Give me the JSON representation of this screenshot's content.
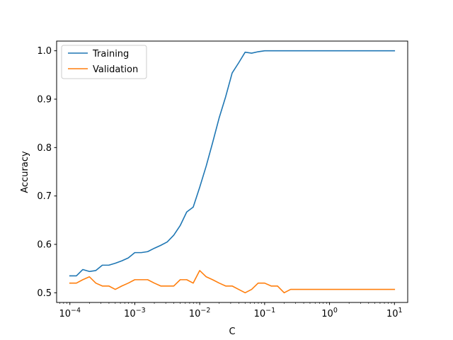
{
  "chart_data": {
    "type": "line",
    "xlabel": "C",
    "ylabel": "Accuracy",
    "xscale": "log",
    "xlim": [
      6.25e-05,
      16
    ],
    "ylim": [
      0.48,
      1.02
    ],
    "xticks": [
      {
        "value": 0.0001,
        "base": "10",
        "exp": "−4"
      },
      {
        "value": 0.001,
        "base": "10",
        "exp": "−3"
      },
      {
        "value": 0.01,
        "base": "10",
        "exp": "−2"
      },
      {
        "value": 0.1,
        "base": "10",
        "exp": "−1"
      },
      {
        "value": 1,
        "base": "10",
        "exp": "0"
      },
      {
        "value": 10,
        "base": "10",
        "exp": "1"
      }
    ],
    "yticks": [
      {
        "value": 0.5,
        "label": "0.5"
      },
      {
        "value": 0.6,
        "label": "0.6"
      },
      {
        "value": 0.7,
        "label": "0.7"
      },
      {
        "value": 0.8,
        "label": "0.8"
      },
      {
        "value": 0.9,
        "label": "0.9"
      },
      {
        "value": 1.0,
        "label": "1.0"
      }
    ],
    "grid": false,
    "legend_position": "top-left",
    "series": [
      {
        "name": "Training",
        "color": "#1f77b4",
        "x": [
          0.0001,
          0.000126,
          0.000158,
          0.0002,
          0.000251,
          0.000316,
          0.000398,
          0.000501,
          0.000631,
          0.000794,
          0.001,
          0.00126,
          0.00158,
          0.002,
          0.00251,
          0.00316,
          0.00398,
          0.00501,
          0.00631,
          0.00794,
          0.01,
          0.0126,
          0.0158,
          0.02,
          0.0251,
          0.0316,
          0.0398,
          0.0501,
          0.0631,
          0.0794,
          0.1,
          0.126,
          0.2,
          0.5,
          1,
          2,
          5,
          10
        ],
        "y": [
          0.535,
          0.535,
          0.548,
          0.544,
          0.546,
          0.557,
          0.557,
          0.561,
          0.566,
          0.572,
          0.583,
          0.583,
          0.585,
          0.592,
          0.598,
          0.605,
          0.619,
          0.639,
          0.667,
          0.677,
          0.718,
          0.762,
          0.81,
          0.862,
          0.905,
          0.954,
          0.975,
          0.997,
          0.995,
          0.998,
          1.0,
          1.0,
          1.0,
          1.0,
          1.0,
          1.0,
          1.0,
          1.0
        ]
      },
      {
        "name": "Validation",
        "color": "#ff7f0e",
        "x": [
          0.0001,
          0.000126,
          0.000158,
          0.0002,
          0.000251,
          0.000316,
          0.000398,
          0.000501,
          0.000631,
          0.000794,
          0.001,
          0.00126,
          0.00158,
          0.002,
          0.00251,
          0.00316,
          0.00398,
          0.00501,
          0.00631,
          0.00794,
          0.01,
          0.0126,
          0.0158,
          0.02,
          0.0251,
          0.0316,
          0.0398,
          0.0501,
          0.0631,
          0.0794,
          0.1,
          0.126,
          0.158,
          0.2,
          0.251,
          0.316,
          0.5,
          1,
          2,
          5,
          10
        ],
        "y": [
          0.52,
          0.52,
          0.527,
          0.533,
          0.52,
          0.514,
          0.514,
          0.507,
          0.514,
          0.52,
          0.527,
          0.527,
          0.527,
          0.52,
          0.514,
          0.514,
          0.514,
          0.527,
          0.527,
          0.52,
          0.546,
          0.533,
          0.527,
          0.52,
          0.514,
          0.514,
          0.507,
          0.5,
          0.507,
          0.52,
          0.52,
          0.514,
          0.514,
          0.5,
          0.507,
          0.507,
          0.507,
          0.507,
          0.507,
          0.507,
          0.507
        ]
      }
    ]
  }
}
